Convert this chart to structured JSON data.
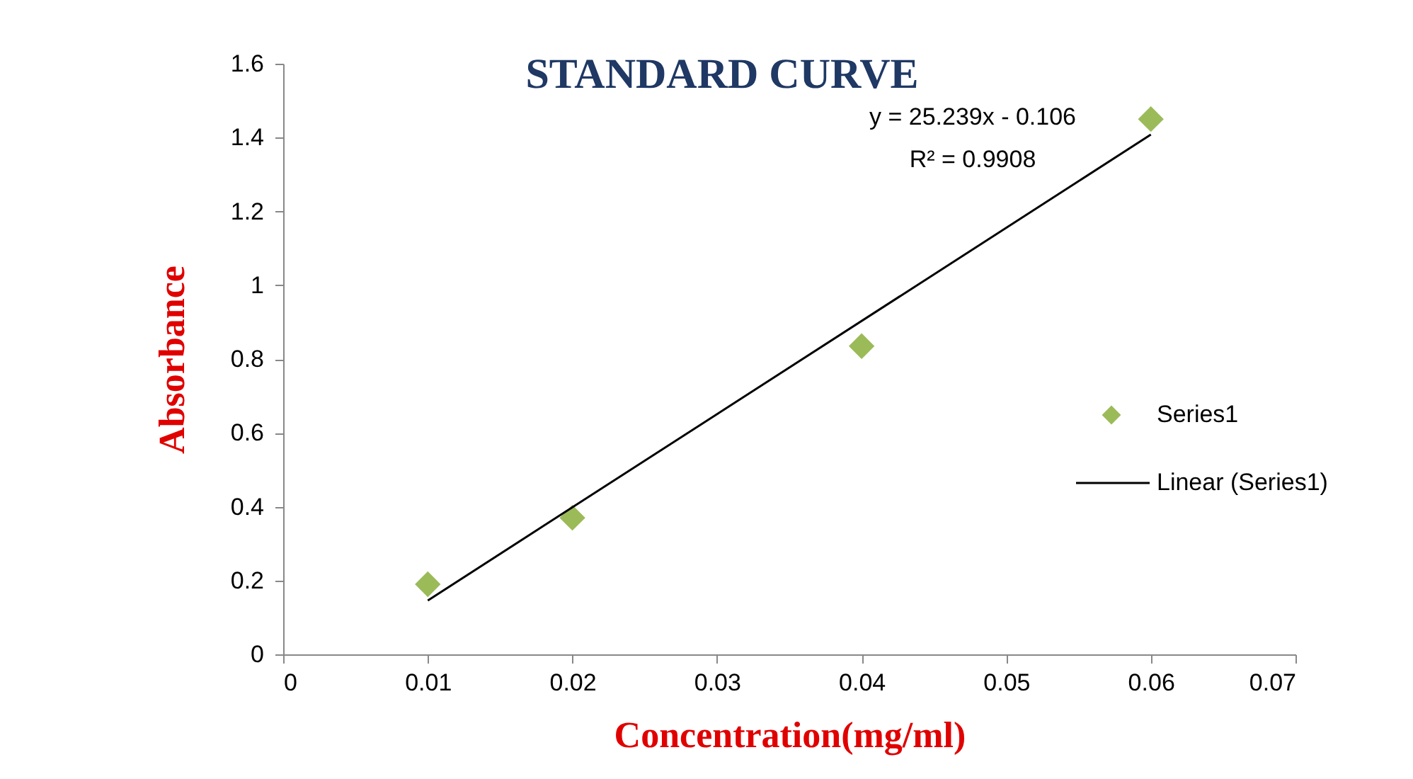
{
  "chart_data": {
    "type": "scatter",
    "title": "STANDARD CURVE",
    "xlabel": "Concentration(mg/ml)",
    "ylabel": "Absorbance",
    "xlim": [
      0,
      0.07
    ],
    "xticks": [
      0,
      0.01,
      0.02,
      0.03,
      0.04,
      0.05,
      0.06,
      0.07
    ],
    "ylim": [
      0,
      1.6
    ],
    "yticks": [
      0,
      0.2,
      0.4,
      0.6,
      0.8,
      1,
      1.2,
      1.4,
      1.6
    ],
    "grid": false,
    "legend": "right",
    "x": [
      0.01,
      0.02,
      0.04,
      0.06
    ],
    "series": [
      {
        "name": "Series1",
        "marker": "diamond",
        "color": "#9bbb59",
        "values": [
          0.19,
          0.37,
          0.835,
          1.45
        ]
      },
      {
        "name": "Linear (Series1)",
        "type": "line",
        "marker": "none",
        "line_style": "solid",
        "color": "#000000",
        "x": [
          0.01,
          0.06
        ],
        "values": [
          0.146,
          1.408
        ]
      }
    ],
    "annotations": [
      "y = 25.239x - 0.106",
      "R² = 0.9908"
    ]
  }
}
